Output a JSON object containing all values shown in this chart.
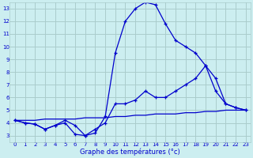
{
  "xlabel": "Graphe des températures (°c)",
  "xlim": [
    -0.5,
    23.5
  ],
  "ylim": [
    2.5,
    13.5
  ],
  "yticks": [
    3,
    4,
    5,
    6,
    7,
    8,
    9,
    10,
    11,
    12,
    13
  ],
  "xticks": [
    0,
    1,
    2,
    3,
    4,
    5,
    6,
    7,
    8,
    9,
    10,
    11,
    12,
    13,
    14,
    15,
    16,
    17,
    18,
    19,
    20,
    21,
    22,
    23
  ],
  "bg_color": "#cceef0",
  "grid_color": "#aacccc",
  "line_color": "#0000cc",
  "line1_y": [
    4.2,
    4.0,
    3.9,
    3.5,
    3.8,
    4.0,
    3.1,
    3.0,
    3.2,
    4.5,
    9.5,
    12.0,
    13.0,
    13.5,
    13.3,
    11.8,
    10.5,
    10.0,
    9.5,
    8.5,
    6.5,
    5.5,
    5.2,
    5.0
  ],
  "line2_y": [
    4.2,
    4.0,
    3.9,
    3.5,
    3.8,
    4.2,
    3.8,
    3.0,
    3.5,
    4.0,
    5.5,
    5.5,
    5.8,
    6.5,
    6.0,
    6.0,
    6.5,
    7.0,
    7.5,
    8.5,
    7.5,
    5.5,
    5.2,
    5.0
  ],
  "line3_y": [
    4.2,
    4.2,
    4.2,
    4.3,
    4.3,
    4.3,
    4.3,
    4.4,
    4.4,
    4.4,
    4.5,
    4.5,
    4.6,
    4.6,
    4.7,
    4.7,
    4.7,
    4.8,
    4.8,
    4.9,
    4.9,
    5.0,
    5.0,
    5.0
  ]
}
